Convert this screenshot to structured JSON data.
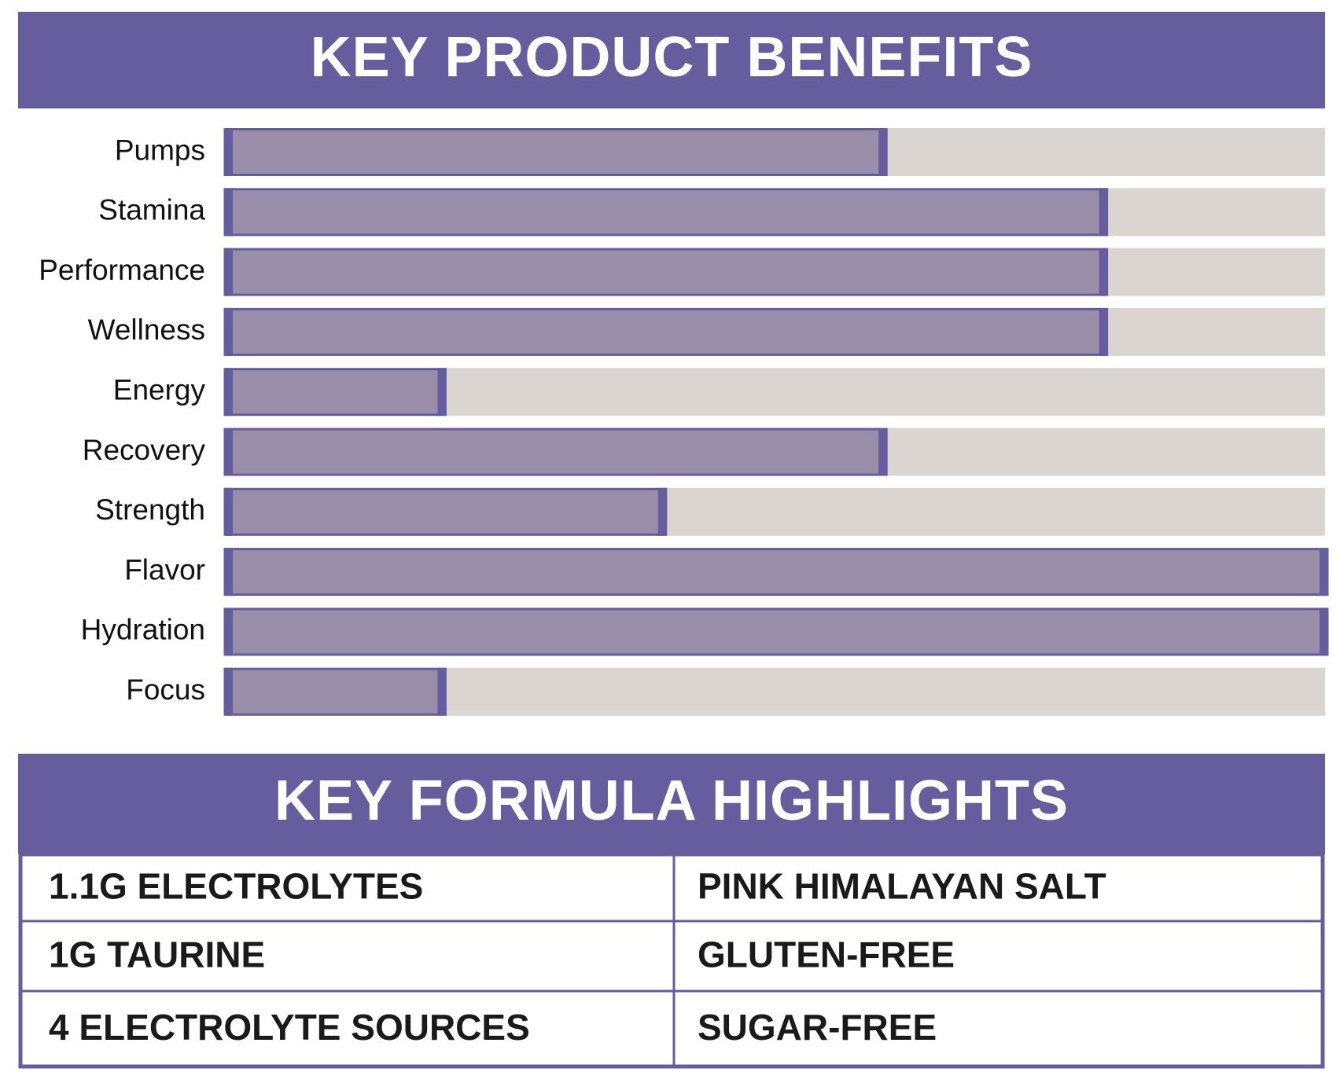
{
  "chart_data": {
    "type": "bar",
    "orientation": "horizontal",
    "title": "KEY PRODUCT BENEFITS",
    "categories": [
      "Pumps",
      "Stamina",
      "Performance",
      "Wellness",
      "Energy",
      "Recovery",
      "Strength",
      "Flavor",
      "Hydration",
      "Focus"
    ],
    "values": [
      60,
      80,
      80,
      80,
      20,
      60,
      40,
      100,
      100,
      20
    ],
    "xlim": [
      0,
      100
    ],
    "color": "#998eaa",
    "edge_color": "#655d9e",
    "track_color": "#dbd5d1"
  },
  "formula": {
    "title": "KEY FORMULA HIGHLIGHTS",
    "rows": [
      [
        "1.1G ELECTROLYTES",
        "PINK HIMALAYAN SALT"
      ],
      [
        "1G TAURINE",
        "GLUTEN-FREE"
      ],
      [
        "4 ELECTROLYTE SOURCES",
        "SUGAR-FREE"
      ]
    ]
  }
}
